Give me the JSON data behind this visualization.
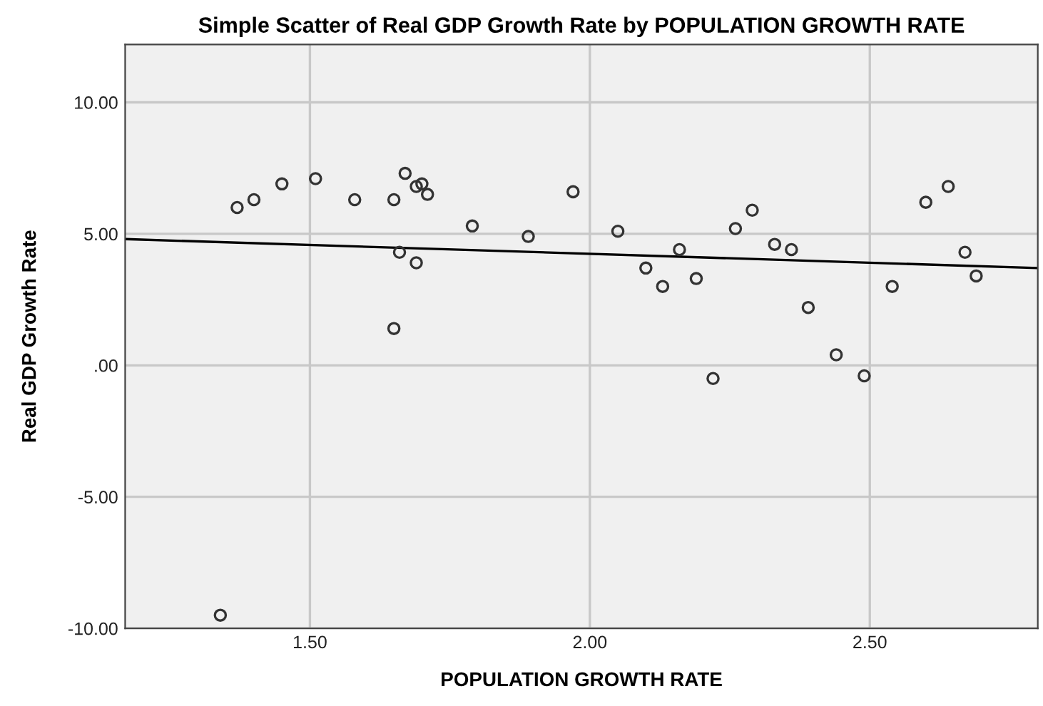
{
  "chart_data": {
    "type": "scatter",
    "title": "Simple Scatter of Real GDP Growth Rate by POPULATION GROWTH RATE",
    "xlabel": "POPULATION GROWTH RATE",
    "ylabel": "Real GDP Growth Rate",
    "series": [
      {
        "color": "#333333",
        "marker": "circle",
        "x": [
          1.34,
          1.37,
          1.4,
          1.45,
          1.51,
          1.58,
          1.65,
          1.65,
          1.66,
          1.67,
          1.69,
          1.69,
          1.7,
          1.71,
          1.79,
          1.89,
          1.97,
          2.05,
          2.1,
          2.13,
          2.16,
          2.19,
          2.22,
          2.26,
          2.29,
          2.33,
          2.36,
          2.39,
          2.44,
          2.49,
          2.54,
          2.6,
          2.64,
          2.67,
          2.69
        ],
        "values": [
          -9.5,
          6.0,
          6.3,
          6.9,
          7.1,
          6.3,
          6.3,
          1.4,
          4.3,
          7.3,
          6.8,
          3.9,
          6.9,
          6.5,
          5.3,
          4.9,
          6.6,
          5.1,
          3.7,
          3.0,
          4.4,
          3.3,
          -0.5,
          5.2,
          5.9,
          4.6,
          4.4,
          2.2,
          0.4,
          -0.4,
          3.0,
          6.2,
          6.8,
          4.3,
          3.4
        ]
      },
      {
        "type": "line",
        "color": "#000000",
        "marker": "none",
        "line_style": "solid",
        "x": [
          1.17,
          2.8
        ],
        "values": [
          4.8,
          3.7
        ]
      }
    ],
    "xlim": [
      1.17,
      2.8
    ],
    "ylim": [
      -10,
      12.2
    ],
    "xticks": [
      {
        "value": 1.5,
        "label": "1.50"
      },
      {
        "value": 2.0,
        "label": "2.00"
      },
      {
        "value": 2.5,
        "label": "2.50"
      }
    ],
    "yticks": [
      {
        "value": -10,
        "label": "-10.00"
      },
      {
        "value": -5,
        "label": "-5.00"
      },
      {
        "value": 0,
        "label": ".00"
      },
      {
        "value": 5,
        "label": "5.00"
      },
      {
        "value": 10,
        "label": "10.00"
      }
    ],
    "grid": true,
    "legend": false
  }
}
